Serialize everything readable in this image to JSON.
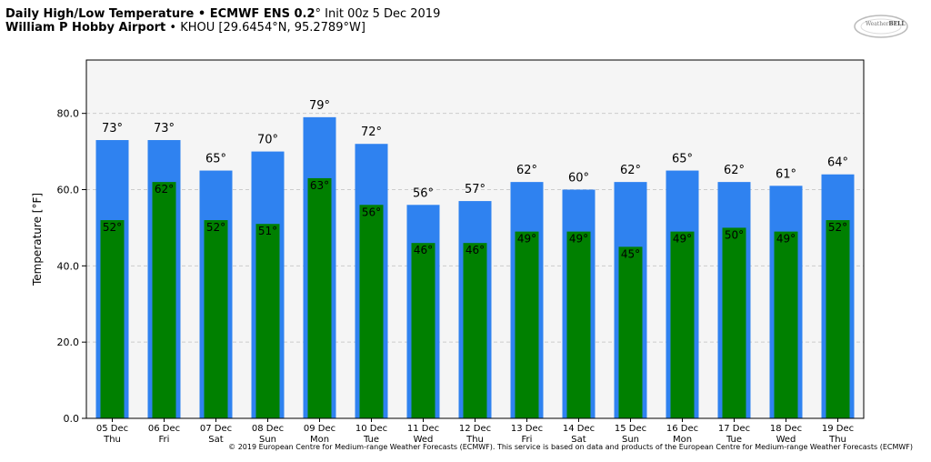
{
  "header": {
    "line1_bold": "Daily High/Low Temperature • ECMWF ENS 0.2",
    "line1_rest": "° Init 00z 5 Dec 2019",
    "line2_bold": "William P Hobby Airport",
    "line2_rest": " • KHOU [29.6454°N, 95.2789°W]"
  },
  "logo": {
    "part1": "Weather",
    "part2": "BELL",
    "icon": "weatherbell-logo-icon"
  },
  "copyright": "© 2019 European Centre for Medium-range Weather Forecasts (ECMWF). This service is based on data and products of the European Centre for Medium-range Weather Forecasts (ECMWF)",
  "colors": {
    "high": "#2f82f0",
    "low": "#008000",
    "plot_bg": "#f5f5f5",
    "grid": "#cccccc"
  },
  "chart_data": {
    "type": "bar",
    "ylabel": "Temperature [°F]",
    "ylim": [
      0,
      94
    ],
    "yticks": [
      0,
      20,
      40,
      60,
      80
    ],
    "ytick_labels": [
      "0.0",
      "20.0",
      "40.0",
      "60.0",
      "80.0"
    ],
    "grid": "horizontal dashed",
    "categories": [
      "05 Dec",
      "06 Dec",
      "07 Dec",
      "08 Dec",
      "09 Dec",
      "10 Dec",
      "11 Dec",
      "12 Dec",
      "13 Dec",
      "14 Dec",
      "15 Dec",
      "16 Dec",
      "17 Dec",
      "18 Dec",
      "19 Dec"
    ],
    "weekdays": [
      "Thu",
      "Fri",
      "Sat",
      "Sun",
      "Mon",
      "Tue",
      "Wed",
      "Thu",
      "Fri",
      "Sat",
      "Sun",
      "Mon",
      "Tue",
      "Wed",
      "Thu"
    ],
    "series": [
      {
        "values": [
          73,
          73,
          65,
          70,
          79,
          72,
          56,
          57,
          62,
          60,
          62,
          65,
          62,
          61,
          64
        ],
        "labels": [
          "73°",
          "73°",
          "65°",
          "70°",
          "79°",
          "72°",
          "56°",
          "57°",
          "62°",
          "60°",
          "62°",
          "65°",
          "62°",
          "61°",
          "64°"
        ]
      },
      {
        "values": [
          52,
          62,
          52,
          51,
          63,
          56,
          46,
          46,
          49,
          49,
          45,
          49,
          50,
          49,
          52
        ],
        "labels": [
          "52°",
          "62°",
          "52°",
          "51°",
          "63°",
          "56°",
          "46°",
          "46°",
          "49°",
          "49°",
          "45°",
          "49°",
          "50°",
          "49°",
          "52°"
        ]
      }
    ]
  }
}
